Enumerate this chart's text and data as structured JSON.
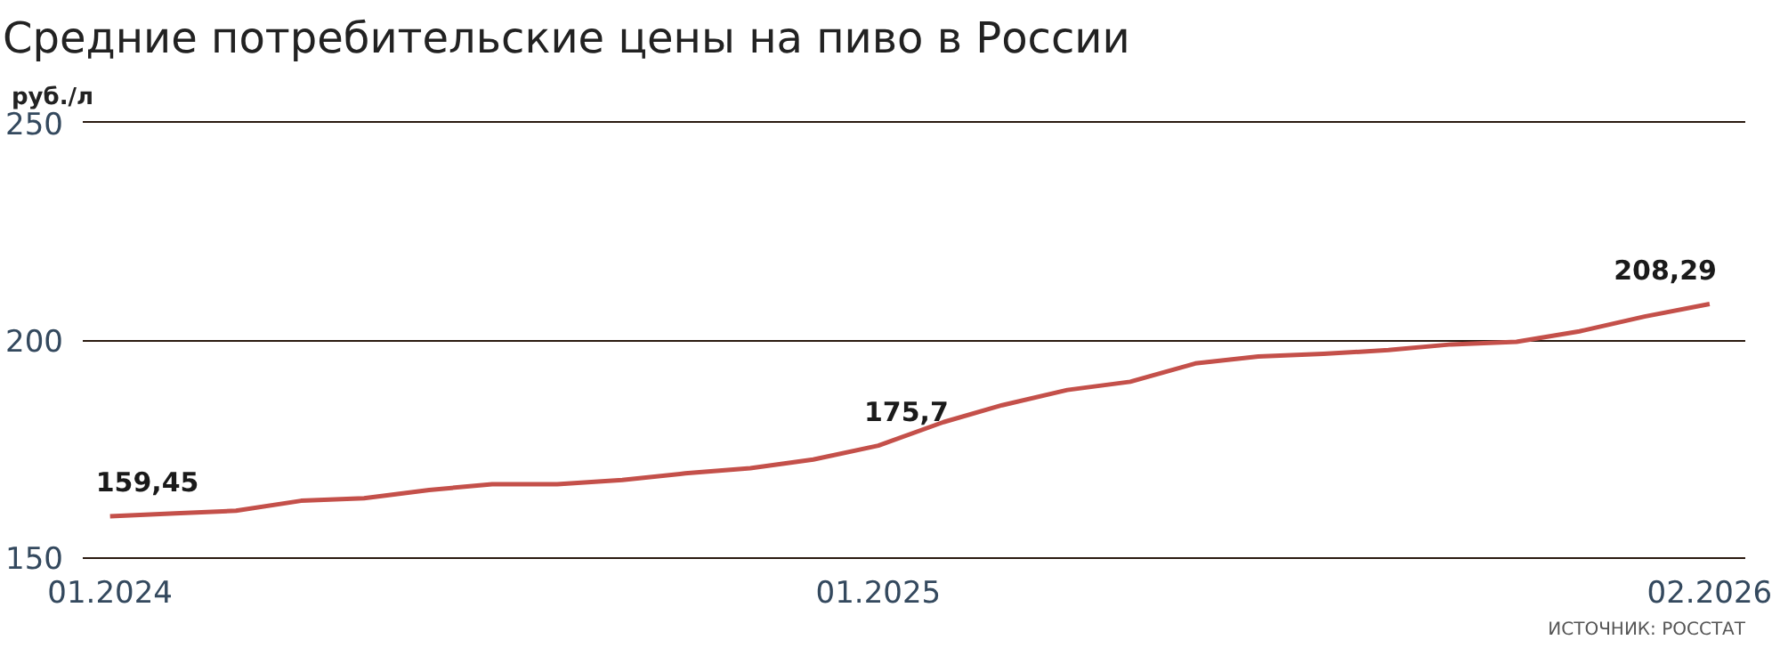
{
  "chart_data": {
    "type": "line",
    "title": "Средние потребительские цены на пиво в России",
    "ylabel": "руб./л",
    "x": [
      "2024-01",
      "2024-02",
      "2024-03",
      "2024-04",
      "2024-05",
      "2024-06",
      "2024-07",
      "2024-08",
      "2024-09",
      "2024-10",
      "2024-11",
      "2024-12",
      "2025-01",
      "2025-02",
      "2025-03",
      "2025-04",
      "2025-05",
      "2025-06",
      "2025-07",
      "2025-08",
      "2025-09",
      "2025-10",
      "2025-11",
      "2025-12",
      "2026-01",
      "2026-02"
    ],
    "series": [
      {
        "color": "#c4504a",
        "values": [
          159.45,
          160.1,
          160.7,
          163.0,
          163.6,
          165.5,
          166.8,
          166.8,
          167.8,
          169.3,
          170.5,
          172.5,
          175.7,
          181.1,
          185.0,
          188.5,
          190.4,
          194.6,
          196.2,
          196.8,
          197.7,
          199.0,
          199.6,
          202.0,
          205.4,
          208.29
        ],
        "value_labels": [
          "159,45",
          null,
          null,
          null,
          null,
          null,
          null,
          null,
          null,
          null,
          null,
          null,
          "175,7",
          null,
          null,
          null,
          null,
          null,
          null,
          null,
          null,
          null,
          null,
          null,
          null,
          "208,29"
        ]
      }
    ],
    "ylim": [
      150,
      250
    ],
    "yticks": [
      150,
      200,
      250
    ],
    "xlim": [
      "2023-12-19",
      "2026-02-18"
    ],
    "xticks": [
      {
        "value": "2024-01",
        "label": "01.2024"
      },
      {
        "value": "2025-01",
        "label": "01.2025"
      },
      {
        "value": "2026-02",
        "label": "02.2026"
      }
    ],
    "grid": "y",
    "marker": "none",
    "line_style": "solid",
    "annotations": [
      "ИСТОЧНИК: РОССТАТ"
    ]
  }
}
